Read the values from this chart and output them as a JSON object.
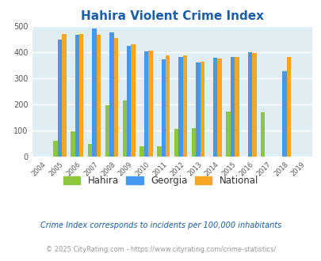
{
  "title": "Hahira Violent Crime Index",
  "years": [
    2004,
    2005,
    2006,
    2007,
    2008,
    2009,
    2010,
    2011,
    2012,
    2013,
    2014,
    2015,
    2016,
    2017,
    2018,
    2019
  ],
  "hahira": [
    0,
    60,
    97,
    47,
    197,
    215,
    40,
    40,
    105,
    108,
    0,
    172,
    0,
    170,
    0,
    0
  ],
  "georgia": [
    0,
    447,
    468,
    492,
    477,
    424,
    403,
    373,
    381,
    360,
    378,
    381,
    400,
    0,
    328,
    0
  ],
  "national": [
    0,
    469,
    470,
    467,
    455,
    431,
    405,
    387,
    387,
    363,
    376,
    383,
    396,
    0,
    381,
    0
  ],
  "hahira_color": "#8dc63f",
  "georgia_color": "#4499ee",
  "national_color": "#f5a623",
  "bg_color": "#e0eef4",
  "title_color": "#1a5fa8",
  "ylim": [
    0,
    500
  ],
  "yticks": [
    0,
    100,
    200,
    300,
    400,
    500
  ],
  "footnote1": "Crime Index corresponds to incidents per 100,000 inhabitants",
  "footnote2": "© 2025 CityRating.com - https://www.cityrating.com/crime-statistics/",
  "bar_width": 0.25
}
